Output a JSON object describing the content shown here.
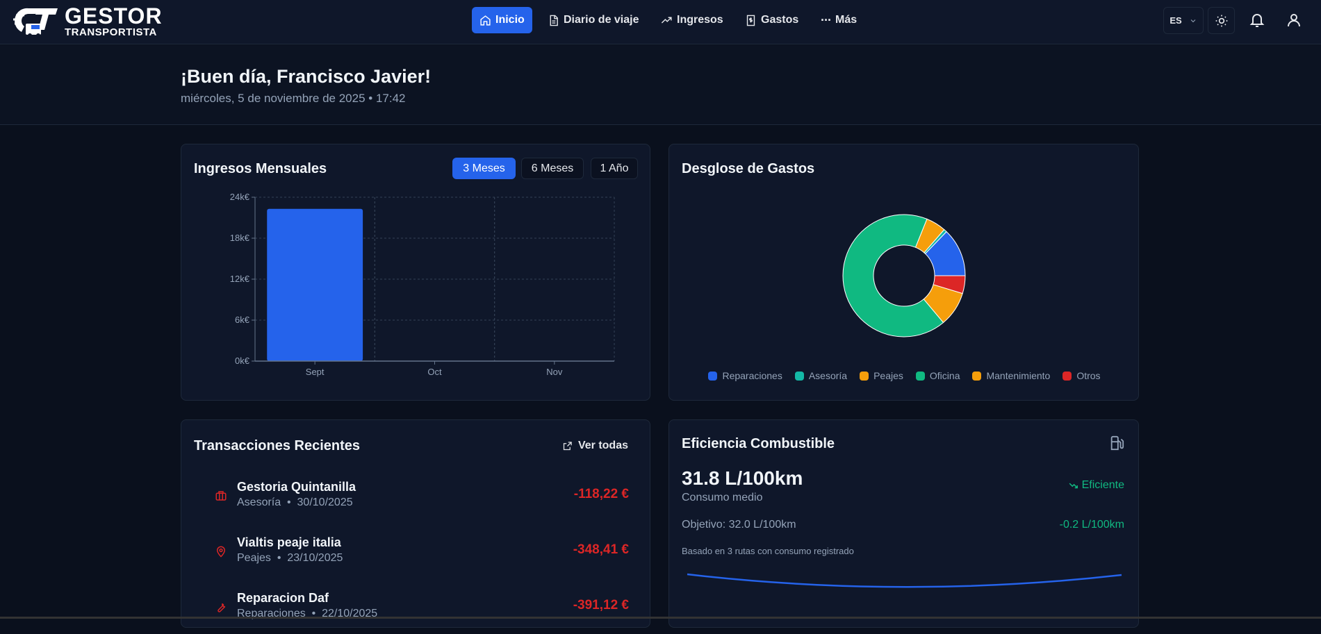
{
  "header": {
    "logo": {
      "title": "GESTOR",
      "subtitle": "TRANSPORTISTA"
    },
    "nav": [
      {
        "label": "Inicio",
        "icon": "home-icon",
        "active": true
      },
      {
        "label": "Diario de viaje",
        "icon": "document-icon",
        "active": false
      },
      {
        "label": "Ingresos",
        "icon": "trending-up-icon",
        "active": false
      },
      {
        "label": "Gastos",
        "icon": "receipt-icon",
        "active": false
      },
      {
        "label": "Más",
        "icon": "more-icon",
        "active": false
      }
    ],
    "language": "ES",
    "icons": [
      "chevron-down-icon",
      "sun-icon",
      "bell-icon",
      "user-icon"
    ]
  },
  "greeting": {
    "title": "¡Buen día, Francisco Javier!",
    "date": "miércoles, 5 de noviembre de 2025 • 17:42"
  },
  "income_card": {
    "title": "Ingresos Mensuales",
    "ranges": [
      {
        "label": "3 Meses",
        "active": true
      },
      {
        "label": "6 Meses",
        "active": false
      },
      {
        "label": "1 Año",
        "active": false
      }
    ]
  },
  "expenses_card": {
    "title": "Desglose de Gastos"
  },
  "chart_data": [
    {
      "type": "bar",
      "categories": [
        "Sept",
        "Oct",
        "Nov"
      ],
      "values": [
        22300,
        0,
        0
      ],
      "yticks": [
        "0k€",
        "6k€",
        "12k€",
        "18k€",
        "24k€"
      ],
      "ylim": [
        0,
        24000
      ],
      "grid": true,
      "color": "#2563eb"
    },
    {
      "type": "pie",
      "donut": true,
      "legend": "bottom",
      "series": [
        {
          "name": "Reparaciones",
          "percent": 12.8,
          "color": "#2563eb"
        },
        {
          "name": "Asesoría",
          "percent": 0.8,
          "color": "#14b8a6"
        },
        {
          "name": "Peajes",
          "percent": 5.3,
          "color": "#f59e0b"
        },
        {
          "name": "Oficina",
          "percent": 67.2,
          "color": "#10b981"
        },
        {
          "name": "Mantenimiento",
          "percent": 9.2,
          "color": "#f59e0b"
        },
        {
          "name": "Otros",
          "percent": 4.7,
          "color": "#dc2626"
        }
      ]
    }
  ],
  "transactions": {
    "title": "Transacciones Recientes",
    "view_all": "Ver todas",
    "items": [
      {
        "name": "Gestoria Quintanilla",
        "category": "Asesoría",
        "date": "30/10/2025",
        "amount": "-118,22 €",
        "icon": "briefcase-icon"
      },
      {
        "name": "Vialtis peaje italia",
        "category": "Peajes",
        "date": "23/10/2025",
        "amount": "-348,41 €",
        "icon": "map-pin-icon"
      },
      {
        "name": "Reparacion Daf",
        "category": "Reparaciones",
        "date": "22/10/2025",
        "amount": "-391,12 €",
        "icon": "wrench-icon"
      }
    ]
  },
  "fuel": {
    "title": "Eficiencia Combustible",
    "value": "31.8 L/100km",
    "label": "Consumo medio",
    "status": "Eficiente",
    "target": "Objetivo: 32.0 L/100km",
    "diff": "-0.2 L/100km",
    "note": "Basado en 3 rutas con consumo registrado",
    "status_color": "#10b981"
  }
}
